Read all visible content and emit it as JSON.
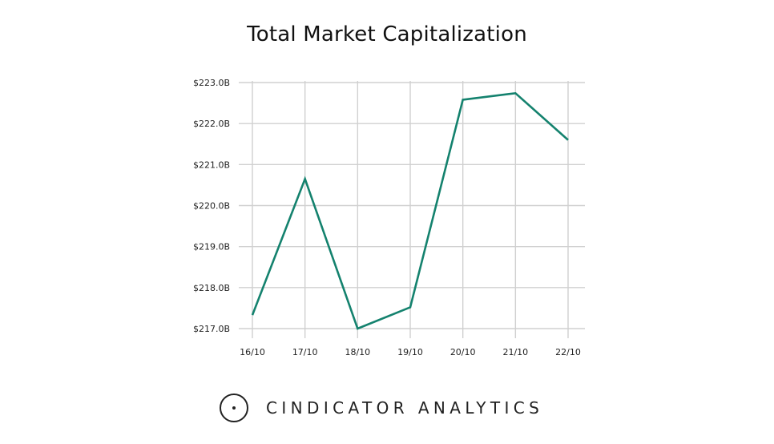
{
  "chart_data": {
    "type": "line",
    "title": "Total Market Capitalization",
    "xlabel": "",
    "ylabel": "",
    "categories": [
      "16/10",
      "17/10",
      "18/10",
      "19/10",
      "20/10",
      "21/10",
      "22/10"
    ],
    "series": [
      {
        "values": [
          217.33,
          220.65,
          217.0,
          217.52,
          222.58,
          222.74,
          221.6
        ],
        "color": "#14826e"
      }
    ],
    "yticks": [
      223.0,
      222.0,
      221.0,
      220.0,
      219.0,
      218.0,
      217.0
    ],
    "ytick_labels": [
      "$223.0B",
      "$222.0B",
      "$221.0B",
      "$220.0B",
      "$219.0B",
      "$218.0B",
      "$217.0B"
    ],
    "ylim": [
      217.0,
      223.0
    ],
    "grid": true,
    "legend": "none",
    "grid_color": "#d0d0d0"
  },
  "brand": {
    "name": "CINDICATOR ANALYTICS"
  }
}
